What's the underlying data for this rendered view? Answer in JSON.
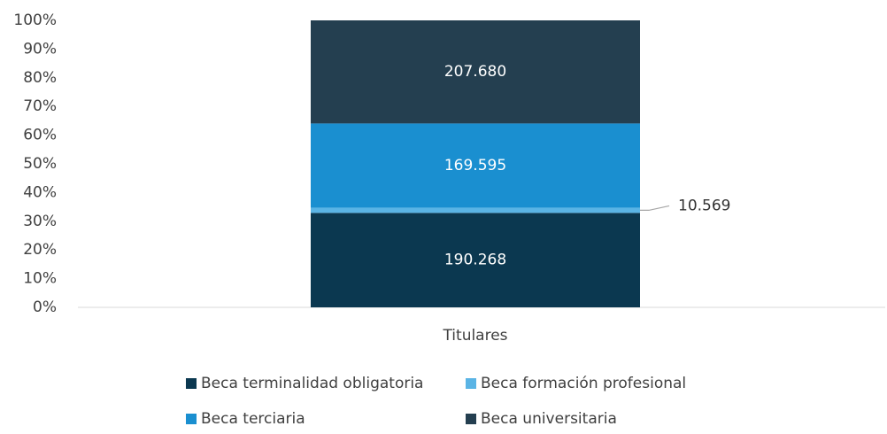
{
  "chart_data": {
    "type": "bar",
    "stacking": "percent",
    "categories": [
      "Titulares"
    ],
    "series": [
      {
        "name": "Beca terminalidad obligatoria",
        "color": "#0b3850",
        "values": [
          190268
        ],
        "value_labels": [
          "190.268"
        ],
        "label_color": "#ffffff"
      },
      {
        "name": "Beca formación profesional",
        "color": "#5ab4e5",
        "values": [
          10569
        ],
        "value_labels": [
          "10.569"
        ],
        "label_outside": true,
        "label_color": "#333333"
      },
      {
        "name": "Beca terciaria",
        "color": "#1a8fd0",
        "values": [
          169595
        ],
        "value_labels": [
          "169.595"
        ],
        "label_color": "#ffffff"
      },
      {
        "name": "Beca universitaria",
        "color": "#243f50",
        "values": [
          207680
        ],
        "value_labels": [
          "207.680"
        ],
        "label_color": "#ffffff"
      }
    ],
    "ylim": [
      0,
      100
    ],
    "yticks": [
      {
        "value": 0,
        "label": "0%"
      },
      {
        "value": 10,
        "label": "10%"
      },
      {
        "value": 20,
        "label": "20%"
      },
      {
        "value": 30,
        "label": "30%"
      },
      {
        "value": 40,
        "label": "40%"
      },
      {
        "value": 50,
        "label": "50%"
      },
      {
        "value": 60,
        "label": "60%"
      },
      {
        "value": 70,
        "label": "70%"
      },
      {
        "value": 80,
        "label": "80%"
      },
      {
        "value": 90,
        "label": "90%"
      },
      {
        "value": 100,
        "label": "100%"
      }
    ],
    "legend": "bottom"
  }
}
